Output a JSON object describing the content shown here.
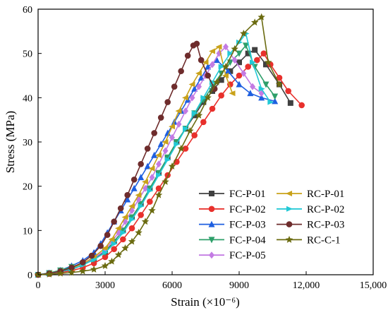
{
  "chart_data": {
    "type": "line",
    "title": "",
    "xlabel": "Strain (×10⁻⁶)",
    "ylabel": "Stress (MPa)",
    "xlim": [
      0,
      15000
    ],
    "ylim": [
      0,
      60
    ],
    "xticks": [
      0,
      3000,
      6000,
      9000,
      12000,
      15000
    ],
    "xtick_labels": [
      "0",
      "3000",
      "6000",
      "9000",
      "12,000",
      "15,000"
    ],
    "yticks": [
      0,
      10,
      20,
      30,
      40,
      50,
      60
    ],
    "ytick_labels": [
      "0",
      "10",
      "20",
      "30",
      "40",
      "50",
      "60"
    ],
    "grid": false,
    "legend_position": "bottom-right",
    "series": [
      {
        "name": "FC-P-01",
        "color": "#404040",
        "marker": "square",
        "x": [
          0,
          500,
          1000,
          1500,
          2000,
          2500,
          3000,
          3400,
          3800,
          4200,
          4600,
          5000,
          5400,
          5800,
          6200,
          6600,
          7000,
          7400,
          7800,
          8200,
          8600,
          9000,
          9400,
          9700,
          10200,
          10800,
          11300
        ],
        "y": [
          0,
          0.3,
          0.7,
          1.2,
          2.2,
          3.5,
          5.2,
          7.5,
          10,
          13,
          16,
          19.5,
          23,
          26.5,
          30,
          33,
          36,
          39,
          41.5,
          44,
          46,
          48,
          50,
          50.8,
          47.5,
          43,
          38.8
        ]
      },
      {
        "name": "FC-P-02",
        "color": "#e8302c",
        "marker": "circle",
        "x": [
          0,
          500,
          1000,
          1500,
          2000,
          2500,
          3000,
          3400,
          3800,
          4200,
          4600,
          5000,
          5400,
          5800,
          6200,
          6600,
          7000,
          7400,
          7800,
          8200,
          8600,
          9000,
          9400,
          9800,
          10100,
          10400,
          10800,
          11200,
          11800
        ],
        "y": [
          0,
          0.2,
          0.5,
          0.9,
          1.6,
          2.6,
          4,
          5.8,
          8,
          10.5,
          13.5,
          16.5,
          19.5,
          22.5,
          25.5,
          28.5,
          31.5,
          34.5,
          37.5,
          40.5,
          43,
          45,
          47,
          48.5,
          50,
          47.5,
          44.5,
          41.5,
          38.3
        ]
      },
      {
        "name": "FC-P-03",
        "color": "#1e5fe0",
        "marker": "triangle-up",
        "x": [
          0,
          500,
          1000,
          1500,
          2000,
          2500,
          2800,
          3100,
          3400,
          3700,
          4000,
          4300,
          4600,
          4900,
          5200,
          5500,
          5800,
          6100,
          6400,
          6700,
          7000,
          7300,
          7600,
          8000,
          8500,
          9000,
          9500,
          10000,
          10600
        ],
        "y": [
          0,
          0.4,
          1,
          2,
          3.2,
          5,
          7,
          9.5,
          12,
          14.5,
          17,
          19.5,
          22,
          24.5,
          27,
          29.5,
          32,
          34.5,
          37,
          39.5,
          42,
          44.5,
          47,
          48.5,
          46,
          43,
          41,
          40,
          39.2
        ]
      },
      {
        "name": "FC-P-04",
        "color": "#2e9f6a",
        "marker": "triangle-down",
        "x": [
          0,
          500,
          1000,
          1500,
          2000,
          2500,
          3000,
          3400,
          3800,
          4200,
          4600,
          5000,
          5400,
          5800,
          6200,
          6600,
          7000,
          7400,
          7800,
          8200,
          8600,
          9000,
          9300,
          9700,
          10200,
          10600
        ],
        "y": [
          0,
          0.4,
          1,
          1.8,
          2.5,
          3.5,
          5,
          7.5,
          10,
          13,
          16,
          19.5,
          23,
          26.5,
          30,
          33,
          36.5,
          39.5,
          42.5,
          45.5,
          48,
          50,
          51.8,
          47,
          43,
          40.3
        ]
      },
      {
        "name": "FC-P-05",
        "color": "#c37be3",
        "marker": "diamond",
        "x": [
          0,
          500,
          1000,
          1500,
          2000,
          2500,
          3000,
          3300,
          3600,
          3900,
          4200,
          4500,
          4800,
          5100,
          5400,
          5700,
          6000,
          6300,
          6600,
          6900,
          7200,
          7500,
          7800,
          8100,
          8400,
          8800,
          9200,
          9600,
          10000
        ],
        "y": [
          0,
          0.3,
          0.8,
          1.5,
          2.5,
          3.8,
          5.5,
          7.5,
          9.5,
          12,
          14.5,
          17,
          19.5,
          22,
          25,
          28,
          31,
          34,
          37,
          40,
          42.5,
          45,
          47.5,
          50,
          51.5,
          48.5,
          45.5,
          42.5,
          41
        ]
      },
      {
        "name": "RC-P-01",
        "color": "#c9a21a",
        "marker": "arrow-left",
        "x": [
          0,
          500,
          1000,
          1500,
          2000,
          2500,
          3000,
          3300,
          3600,
          3900,
          4200,
          4500,
          4800,
          5100,
          5400,
          5700,
          6000,
          6300,
          6600,
          6900,
          7200,
          7500,
          7800,
          8100,
          8400,
          8700
        ],
        "y": [
          0,
          0.3,
          0.8,
          1.5,
          2.5,
          4,
          6,
          8,
          10.5,
          13,
          15.5,
          18,
          21,
          24,
          27,
          30,
          33.5,
          37,
          40,
          43,
          45.5,
          48,
          50.5,
          51.5,
          45,
          41
        ]
      },
      {
        "name": "RC-P-02",
        "color": "#22c9d6",
        "marker": "arrow-right",
        "x": [
          0,
          500,
          1000,
          1500,
          2000,
          2500,
          3000,
          3400,
          3800,
          4200,
          4600,
          5000,
          5400,
          5800,
          6200,
          6600,
          7000,
          7400,
          7800,
          8200,
          8600,
          9000,
          9300,
          9600,
          10000,
          10400
        ],
        "y": [
          0,
          0.3,
          0.7,
          1.3,
          2.2,
          3.4,
          5,
          7,
          9.5,
          12.5,
          15.5,
          19,
          22.5,
          26,
          29.5,
          33,
          36.5,
          40,
          43.5,
          47,
          50,
          52.5,
          54.5,
          48,
          42,
          39
        ]
      },
      {
        "name": "RC-P-03",
        "color": "#6e2c2c",
        "marker": "circle",
        "x": [
          0,
          500,
          1000,
          1500,
          2000,
          2400,
          2800,
          3100,
          3400,
          3700,
          4000,
          4300,
          4600,
          4900,
          5200,
          5500,
          5800,
          6100,
          6400,
          6700,
          6950,
          7100,
          7300,
          7600,
          7900
        ],
        "y": [
          0,
          0.3,
          0.8,
          1.6,
          2.8,
          4.3,
          6.5,
          9,
          12,
          15,
          18,
          21.5,
          25,
          28.5,
          32,
          35.5,
          39,
          42.5,
          46,
          49.5,
          51.8,
          52.2,
          48.5,
          45,
          42
        ]
      },
      {
        "name": "RC-C-1",
        "color": "#6b6b10",
        "marker": "star",
        "x": [
          0,
          500,
          1000,
          1500,
          2000,
          2500,
          3000,
          3300,
          3600,
          3900,
          4200,
          4500,
          4800,
          5100,
          5400,
          5700,
          6000,
          6400,
          6800,
          7200,
          7600,
          8000,
          8400,
          8800,
          9200,
          9700,
          10000,
          10300,
          10800
        ],
        "y": [
          0,
          0.1,
          0.3,
          0.5,
          0.8,
          1.2,
          2,
          3,
          4.5,
          6,
          7.5,
          9.5,
          12,
          14.5,
          18,
          21,
          24.5,
          28.5,
          32.5,
          36,
          40,
          43.5,
          47,
          51,
          54.5,
          57,
          58.2,
          48,
          43
        ]
      }
    ]
  }
}
